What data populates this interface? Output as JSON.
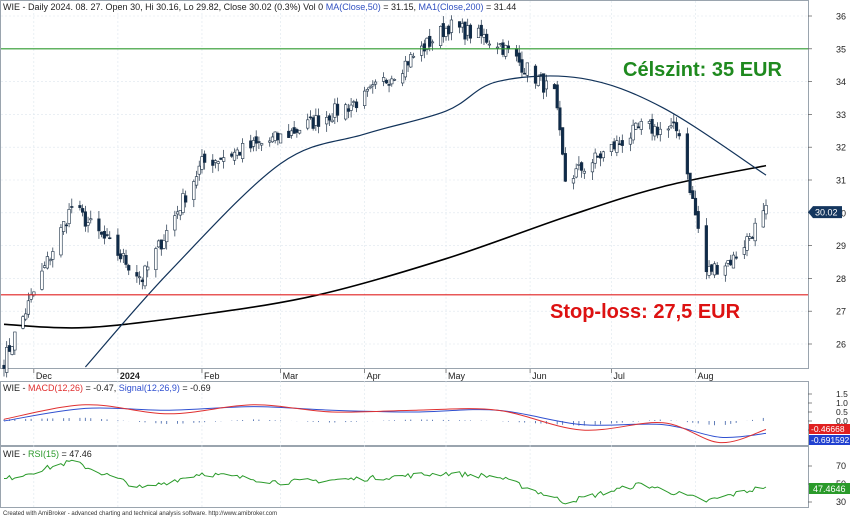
{
  "colors": {
    "candle_up": "#ffffff",
    "candle_down": "#0e2b4a",
    "ma50": "#12335a",
    "ma200": "#000000",
    "target_line": "#2e9a2e",
    "stop_line": "#e02020",
    "target_text": "#1f8a1f",
    "stop_text": "#dd1111",
    "macd": "#e03030",
    "signal": "#3050d0",
    "hist": "#5070b0",
    "rsi": "#2a9a2a",
    "grid": "#dde6ee",
    "price_label_bg": "#14365e"
  },
  "header": {
    "prefix": "WIE - Daily 2024. 08. 27. Open 30, Hi 30.16, Lo 29.82, Close 30.02 (0.3%) Vol 0 ",
    "ma50_label": "MA(Close,50)",
    "ma50_value": " = 31.15, ",
    "ma200_label": "MA1(Close,200)",
    "ma200_value": " = 31.44"
  },
  "annotations": {
    "target": "Célszint: 35 EUR",
    "stop": "Stop-loss: 27,5 EUR"
  },
  "price_panel": {
    "last_price_label": "30.02",
    "y_ticks": [
      "36",
      "35",
      "34",
      "33",
      "32",
      "31",
      "30",
      "29",
      "28",
      "27",
      "26"
    ],
    "target_level": 35,
    "stop_level": 27.5
  },
  "x_axis": {
    "labels": [
      "Dec",
      "2024",
      "Feb",
      "Mar",
      "Apr",
      "May",
      "Jun",
      "Jul",
      "Aug"
    ]
  },
  "macd_panel": {
    "title_prefix": "WIE - ",
    "macd_label": "MACD(12,26)",
    "macd_value": " = -0.47, ",
    "signal_label": "Signal(12,26,9)",
    "signal_value": " = -0.69",
    "y_ticks": [
      "1.5",
      "1.0",
      "0.5",
      "0.0",
      "-0.5"
    ],
    "macd_badge": "-0.46668",
    "signal_badge": "-0.691592"
  },
  "rsi_panel": {
    "title_prefix": "WIE - ",
    "rsi_label": "RSI(15)",
    "rsi_value": " = 47.46",
    "y_ticks": [
      "70",
      "50",
      "30"
    ],
    "badge": "47.4646"
  },
  "footer": "Created with AmiBroker - advanced charting and technical analysis software. http://www.amibroker.com",
  "chart_data": {
    "type": "candlestick",
    "instrument": "WIE",
    "key_points": {
      "x": [
        "2023-11-20",
        "2023-12-15",
        "2024-01-10",
        "2024-02-01",
        "2024-03-01",
        "2024-04-01",
        "2024-05-02",
        "2024-05-20",
        "2024-06-10",
        "2024-06-14",
        "2024-07-12",
        "2024-07-26",
        "2024-08-05",
        "2024-08-15",
        "2024-08-27"
      ],
      "close": [
        25.5,
        30.2,
        28.0,
        31.5,
        32.3,
        33.5,
        35.7,
        35.2,
        33.6,
        31.0,
        32.6,
        32.5,
        28.2,
        28.6,
        30.02
      ]
    },
    "ma50": {
      "name": "MA(Close,50)",
      "x": [
        "2023-12-20",
        "2024-01-20",
        "2024-03-01",
        "2024-04-01",
        "2024-05-01",
        "2024-05-20",
        "2024-06-20",
        "2024-07-20",
        "2024-08-27"
      ],
      "values": [
        25.3,
        28.2,
        31.5,
        32.4,
        33.1,
        34.0,
        34.1,
        33.2,
        31.15
      ]
    },
    "ma200": {
      "name": "MA1(Close,200)",
      "x": [
        "2023-11-20",
        "2023-12-20",
        "2024-02-01",
        "2024-03-15",
        "2024-05-01",
        "2024-06-15",
        "2024-07-20",
        "2024-08-27"
      ],
      "values": [
        26.6,
        26.5,
        26.9,
        27.5,
        28.6,
        29.9,
        30.8,
        31.44
      ]
    },
    "macd": {
      "x": [
        "2023-11-20",
        "2023-12-20",
        "2024-01-20",
        "2024-02-20",
        "2024-03-20",
        "2024-04-20",
        "2024-05-20",
        "2024-06-20",
        "2024-07-20",
        "2024-08-10",
        "2024-08-27"
      ],
      "values": [
        0.1,
        0.9,
        0.4,
        0.9,
        0.5,
        0.6,
        0.6,
        -0.5,
        -0.1,
        -1.2,
        -0.47
      ]
    },
    "signal": {
      "x": [
        "2023-11-20",
        "2023-12-20",
        "2024-01-20",
        "2024-02-20",
        "2024-03-20",
        "2024-04-20",
        "2024-05-20",
        "2024-06-20",
        "2024-07-20",
        "2024-08-10",
        "2024-08-27"
      ],
      "values": [
        0.0,
        0.7,
        0.6,
        0.8,
        0.6,
        0.5,
        0.6,
        -0.2,
        -0.2,
        -0.9,
        -0.69
      ]
    },
    "rsi": {
      "x": [
        "2023-11-20",
        "2023-12-15",
        "2024-01-10",
        "2024-02-01",
        "2024-03-01",
        "2024-04-01",
        "2024-05-01",
        "2024-05-20",
        "2024-06-14",
        "2024-07-12",
        "2024-08-05",
        "2024-08-27"
      ],
      "values": [
        55,
        75,
        45,
        62,
        52,
        56,
        62,
        58,
        30,
        50,
        31,
        47.46
      ]
    }
  }
}
